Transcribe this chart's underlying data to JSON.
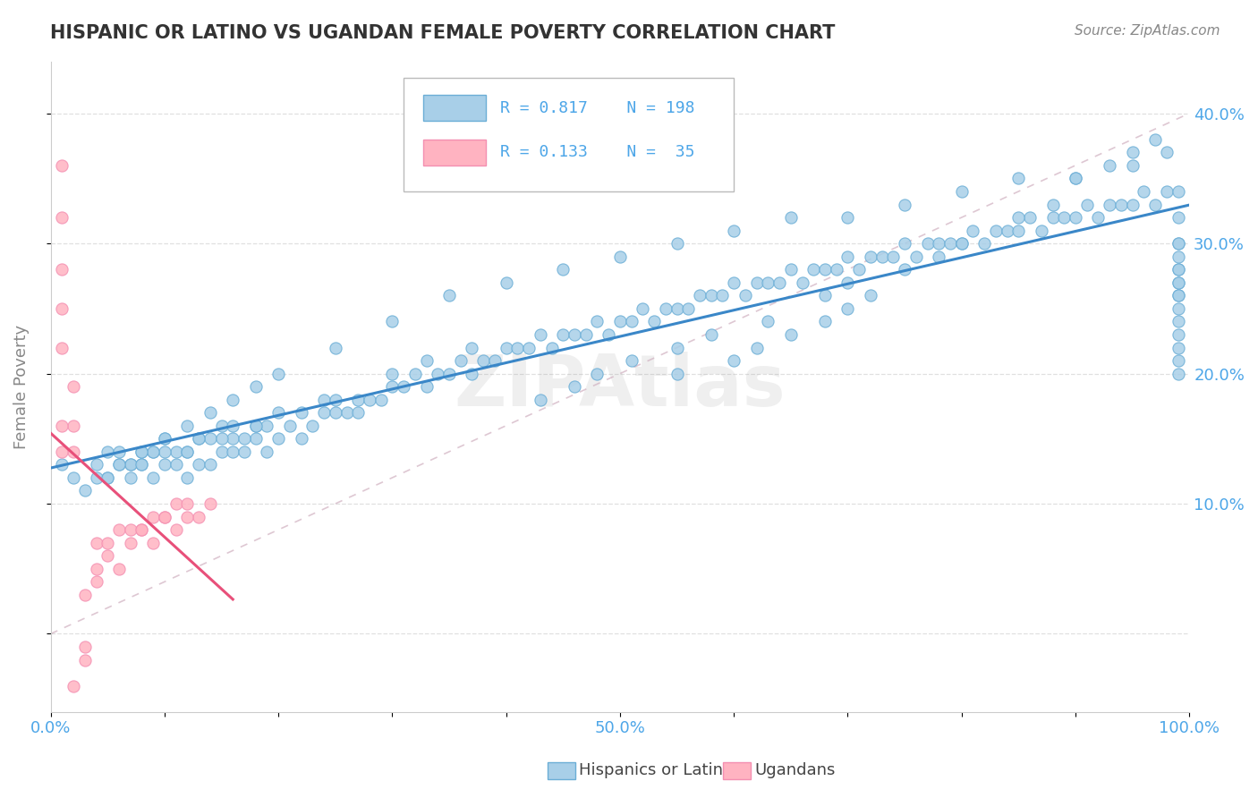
{
  "title": "HISPANIC OR LATINO VS UGANDAN FEMALE POVERTY CORRELATION CHART",
  "source": "Source: ZipAtlas.com",
  "ylabel": "Female Poverty",
  "r_hispanic": 0.817,
  "n_hispanic": 198,
  "r_ugandan": 0.133,
  "n_ugandan": 35,
  "color_hispanic": "#a8cfe8",
  "color_hispanic_edge": "#6baed6",
  "color_ugandan": "#ffb3c1",
  "color_ugandan_edge": "#f48fb1",
  "color_trend_hispanic": "#3a87c8",
  "color_trend_ugandan": "#e8507a",
  "color_diag": "#d4a0b0",
  "tick_label_color": "#4da6e8",
  "axis_label_color": "#888888",
  "title_color": "#333333",
  "source_color": "#888888",
  "legend_text_color": "#4da6e8",
  "watermark": "ZIPAtlas",
  "xlim": [
    0.0,
    1.0
  ],
  "ylim": [
    -0.06,
    0.44
  ],
  "ytick_right": [
    0.1,
    0.2,
    0.3,
    0.4
  ],
  "ytick_right_labels": [
    "10.0%",
    "20.0%",
    "30.0%",
    "40.0%"
  ],
  "xtick_positions": [
    0.0,
    0.5,
    1.0
  ],
  "xtick_labels": [
    "0.0%",
    "50.0%",
    "100.0%"
  ],
  "grid_yticks": [
    0.1,
    0.2,
    0.3,
    0.4
  ],
  "hisp_x": [
    0.01,
    0.02,
    0.03,
    0.04,
    0.05,
    0.05,
    0.06,
    0.06,
    0.07,
    0.07,
    0.08,
    0.08,
    0.09,
    0.09,
    0.1,
    0.1,
    0.11,
    0.11,
    0.12,
    0.12,
    0.13,
    0.13,
    0.14,
    0.14,
    0.15,
    0.15,
    0.16,
    0.16,
    0.17,
    0.18,
    0.18,
    0.19,
    0.19,
    0.2,
    0.2,
    0.21,
    0.22,
    0.22,
    0.23,
    0.24,
    0.24,
    0.25,
    0.25,
    0.26,
    0.27,
    0.27,
    0.28,
    0.29,
    0.3,
    0.3,
    0.31,
    0.32,
    0.33,
    0.33,
    0.34,
    0.35,
    0.36,
    0.37,
    0.37,
    0.38,
    0.39,
    0.4,
    0.41,
    0.42,
    0.43,
    0.44,
    0.45,
    0.46,
    0.47,
    0.48,
    0.49,
    0.5,
    0.51,
    0.52,
    0.53,
    0.54,
    0.55,
    0.56,
    0.57,
    0.58,
    0.59,
    0.6,
    0.61,
    0.62,
    0.63,
    0.64,
    0.65,
    0.66,
    0.67,
    0.68,
    0.69,
    0.7,
    0.71,
    0.72,
    0.73,
    0.74,
    0.75,
    0.76,
    0.77,
    0.78,
    0.79,
    0.8,
    0.81,
    0.82,
    0.83,
    0.84,
    0.85,
    0.86,
    0.87,
    0.88,
    0.89,
    0.9,
    0.91,
    0.92,
    0.93,
    0.94,
    0.95,
    0.96,
    0.97,
    0.98,
    0.99,
    0.99,
    0.99,
    0.99,
    0.99,
    0.55,
    0.6,
    0.62,
    0.65,
    0.68,
    0.7,
    0.72,
    0.43,
    0.46,
    0.48,
    0.51,
    0.55,
    0.58,
    0.63,
    0.68,
    0.7,
    0.75,
    0.78,
    0.8,
    0.85,
    0.88,
    0.9,
    0.93,
    0.95,
    0.97,
    0.1,
    0.12,
    0.13,
    0.15,
    0.16,
    0.17,
    0.18,
    0.07,
    0.08,
    0.09,
    0.04,
    0.05,
    0.06,
    0.08,
    0.1,
    0.12,
    0.14,
    0.16,
    0.18,
    0.2,
    0.25,
    0.3,
    0.35,
    0.4,
    0.45,
    0.5,
    0.55,
    0.6,
    0.65,
    0.7,
    0.75,
    0.8,
    0.85,
    0.9,
    0.95,
    0.98,
    0.99,
    0.99,
    0.99,
    0.99,
    0.99,
    0.99,
    0.99,
    0.99,
    0.99,
    0.99,
    0.99,
    0.99
  ],
  "hisp_y": [
    0.13,
    0.12,
    0.11,
    0.13,
    0.14,
    0.12,
    0.13,
    0.14,
    0.12,
    0.13,
    0.14,
    0.13,
    0.12,
    0.14,
    0.13,
    0.15,
    0.13,
    0.14,
    0.12,
    0.14,
    0.13,
    0.15,
    0.13,
    0.15,
    0.14,
    0.16,
    0.14,
    0.15,
    0.14,
    0.15,
    0.16,
    0.14,
    0.16,
    0.15,
    0.17,
    0.16,
    0.15,
    0.17,
    0.16,
    0.17,
    0.18,
    0.17,
    0.18,
    0.17,
    0.17,
    0.18,
    0.18,
    0.18,
    0.19,
    0.2,
    0.19,
    0.2,
    0.19,
    0.21,
    0.2,
    0.2,
    0.21,
    0.2,
    0.22,
    0.21,
    0.21,
    0.22,
    0.22,
    0.22,
    0.23,
    0.22,
    0.23,
    0.23,
    0.23,
    0.24,
    0.23,
    0.24,
    0.24,
    0.25,
    0.24,
    0.25,
    0.25,
    0.25,
    0.26,
    0.26,
    0.26,
    0.27,
    0.26,
    0.27,
    0.27,
    0.27,
    0.28,
    0.27,
    0.28,
    0.28,
    0.28,
    0.29,
    0.28,
    0.29,
    0.29,
    0.29,
    0.3,
    0.29,
    0.3,
    0.3,
    0.3,
    0.3,
    0.31,
    0.3,
    0.31,
    0.31,
    0.31,
    0.32,
    0.31,
    0.32,
    0.32,
    0.32,
    0.33,
    0.32,
    0.33,
    0.33,
    0.33,
    0.34,
    0.33,
    0.34,
    0.26,
    0.27,
    0.28,
    0.29,
    0.3,
    0.2,
    0.21,
    0.22,
    0.23,
    0.24,
    0.25,
    0.26,
    0.18,
    0.19,
    0.2,
    0.21,
    0.22,
    0.23,
    0.24,
    0.26,
    0.27,
    0.28,
    0.29,
    0.3,
    0.32,
    0.33,
    0.35,
    0.36,
    0.37,
    0.38,
    0.14,
    0.14,
    0.15,
    0.15,
    0.16,
    0.15,
    0.16,
    0.13,
    0.13,
    0.14,
    0.12,
    0.12,
    0.13,
    0.14,
    0.15,
    0.16,
    0.17,
    0.18,
    0.19,
    0.2,
    0.22,
    0.24,
    0.26,
    0.27,
    0.28,
    0.29,
    0.3,
    0.31,
    0.32,
    0.32,
    0.33,
    0.34,
    0.35,
    0.35,
    0.36,
    0.37,
    0.34,
    0.32,
    0.3,
    0.28,
    0.27,
    0.26,
    0.25,
    0.24,
    0.23,
    0.22,
    0.21,
    0.2
  ],
  "ugan_x": [
    0.01,
    0.01,
    0.01,
    0.01,
    0.01,
    0.02,
    0.02,
    0.02,
    0.03,
    0.03,
    0.04,
    0.04,
    0.05,
    0.06,
    0.07,
    0.08,
    0.09,
    0.1,
    0.11,
    0.12,
    0.13,
    0.14,
    0.01,
    0.01,
    0.02,
    0.03,
    0.04,
    0.05,
    0.06,
    0.07,
    0.08,
    0.09,
    0.1,
    0.11,
    0.12
  ],
  "ugan_y": [
    0.36,
    0.32,
    0.28,
    0.25,
    0.22,
    0.19,
    0.16,
    0.14,
    -0.01,
    0.03,
    0.05,
    0.07,
    0.07,
    0.08,
    0.07,
    0.08,
    0.09,
    0.09,
    0.1,
    0.1,
    0.09,
    0.1,
    0.16,
    0.14,
    -0.04,
    -0.02,
    0.04,
    0.06,
    0.05,
    0.08,
    0.08,
    0.07,
    0.09,
    0.08,
    0.09
  ]
}
